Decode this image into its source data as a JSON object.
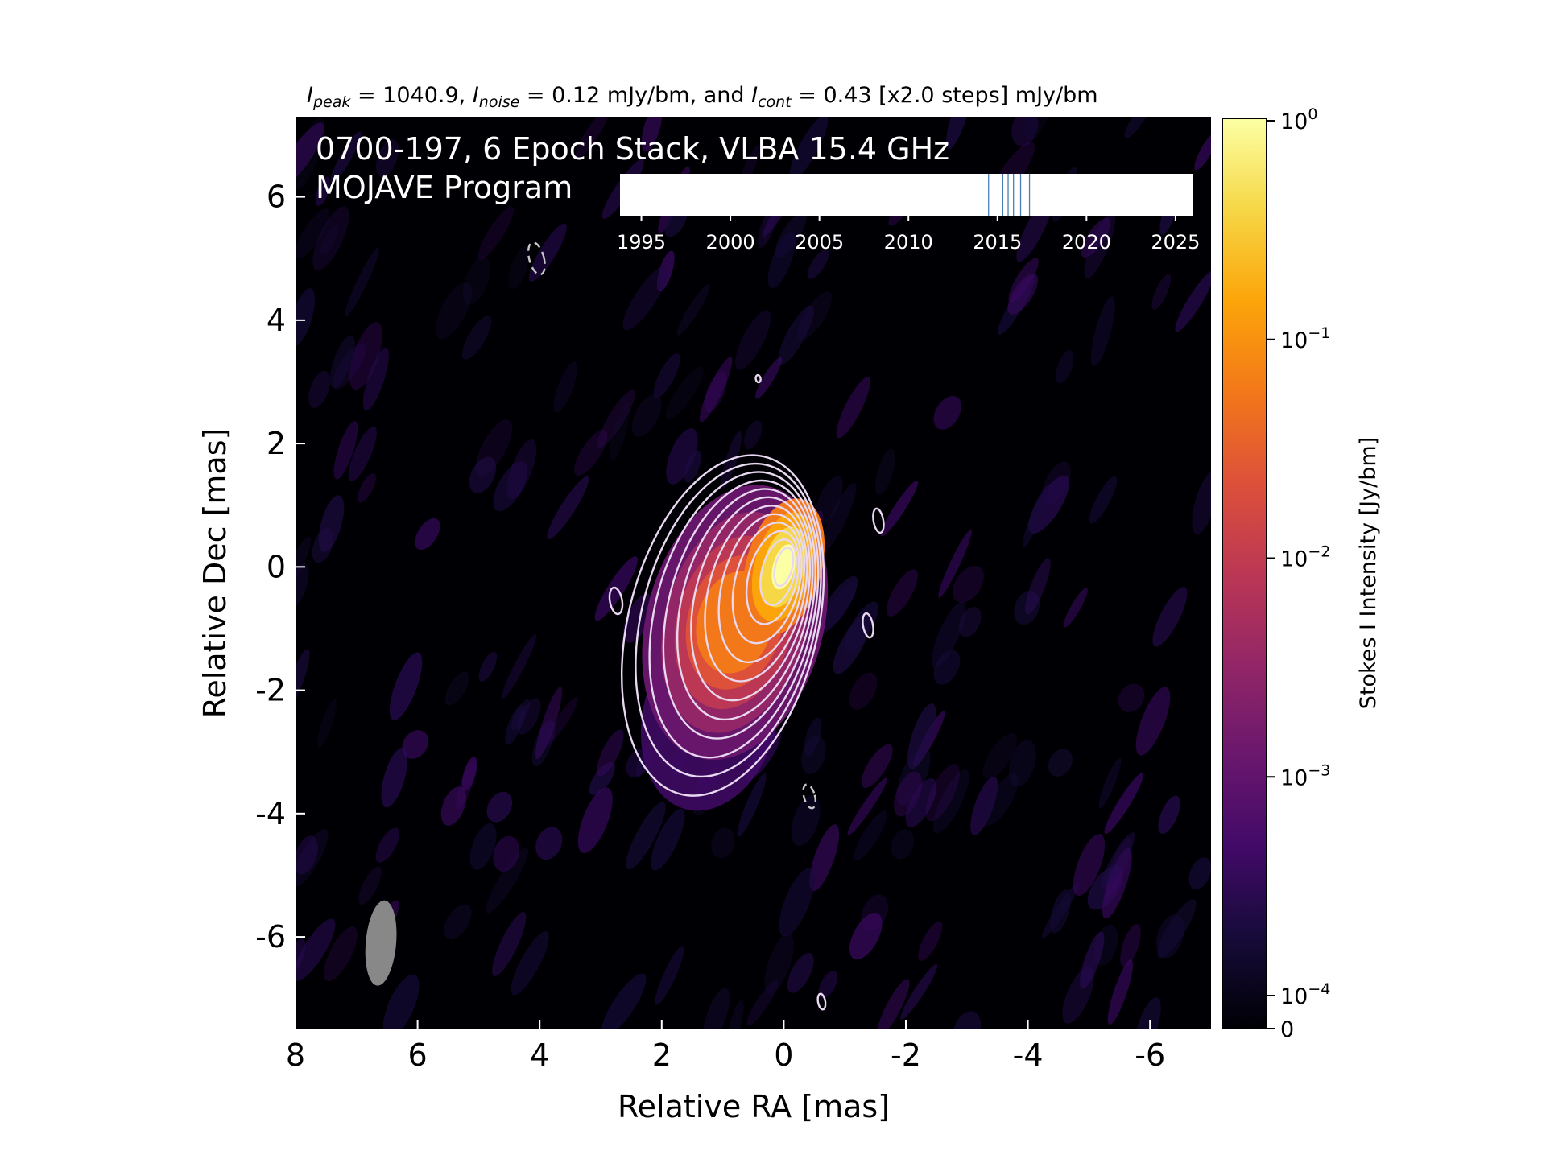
{
  "chart_data": {
    "type": "heatmap",
    "title_parts": {
      "peak_sym": "I",
      "peak_sub": "peak",
      "peak_val": " = 1040.9, ",
      "noise_sym": "I",
      "noise_sub": "noise",
      "noise_val": " = 0.12 mJy/bm, and ",
      "cont_sym": "I",
      "cont_sub": "cont",
      "cont_val": " = 0.43 [x2.0 steps] mJy/bm"
    },
    "overlay_line1": "0700-197, 6 Epoch Stack, VLBA 15.4 GHz",
    "overlay_line2": "MOJAVE Program",
    "xlabel": "Relative RA [mas]",
    "ylabel": "Relative Dec [mas]",
    "xlim": [
      8,
      -7.0
    ],
    "ylim": [
      -7.5,
      7.3
    ],
    "xticks": [
      8,
      6,
      4,
      2,
      0,
      -2,
      -4,
      -6
    ],
    "xtick_labels": [
      "8",
      "6",
      "4",
      "2",
      "0",
      "-2",
      "-4",
      "-6"
    ],
    "yticks": [
      6,
      4,
      2,
      0,
      -2,
      -4,
      -6
    ],
    "ytick_labels": [
      "6",
      "4",
      "2",
      "0",
      "-2",
      "-4",
      "-6"
    ],
    "colorbar": {
      "label": "Stokes I Intensity [Jy/bm]",
      "scale": "log",
      "colormap": "inferno",
      "range": [
        0,
        1
      ],
      "ticks": [
        {
          "value": 1,
          "base": "10",
          "exp": "0"
        },
        {
          "value": 0.1,
          "base": "10",
          "exp": "−1"
        },
        {
          "value": 0.01,
          "base": "10",
          "exp": "−2"
        },
        {
          "value": 0.001,
          "base": "10",
          "exp": "−3"
        },
        {
          "value": 0.0001,
          "base": "10",
          "exp": "−4"
        },
        {
          "value": 0,
          "base": "0",
          "exp": ""
        }
      ]
    },
    "peak_mJy": 1040.9,
    "noise_mJy": 0.12,
    "contour_base_mJy": 0.43,
    "contour_step": 2.0,
    "contour_levels_mJy": [
      -0.43,
      0.43,
      0.86,
      1.72,
      3.44,
      6.88,
      13.76,
      27.52,
      55.04,
      110.08,
      220.16,
      440.32,
      880.64
    ],
    "source_components": [
      {
        "ra": 0.0,
        "dec": 0.0,
        "peak_Jy": 1.04
      },
      {
        "ra": 0.8,
        "dec": -0.9,
        "peak_Jy": 0.15
      },
      {
        "ra": 1.2,
        "dec": -2.4,
        "peak_Jy": 0.004
      }
    ],
    "beam": {
      "center_ra": 6.6,
      "center_dec": -6.1,
      "major_mas": 1.4,
      "minor_mas": 0.5,
      "pa_deg": 5
    },
    "epoch_timeline": {
      "xlim": [
        1993.8,
        2026
      ],
      "ticks": [
        1995,
        2000,
        2005,
        2010,
        2015,
        2020,
        2025
      ],
      "tick_labels": [
        "1995",
        "2000",
        "2005",
        "2010",
        "2015",
        "2020",
        "2025"
      ],
      "epochs": [
        2014.5,
        2015.3,
        2015.6,
        2015.9,
        2016.3,
        2016.8
      ],
      "epoch_color": "#4a7fb5"
    }
  }
}
